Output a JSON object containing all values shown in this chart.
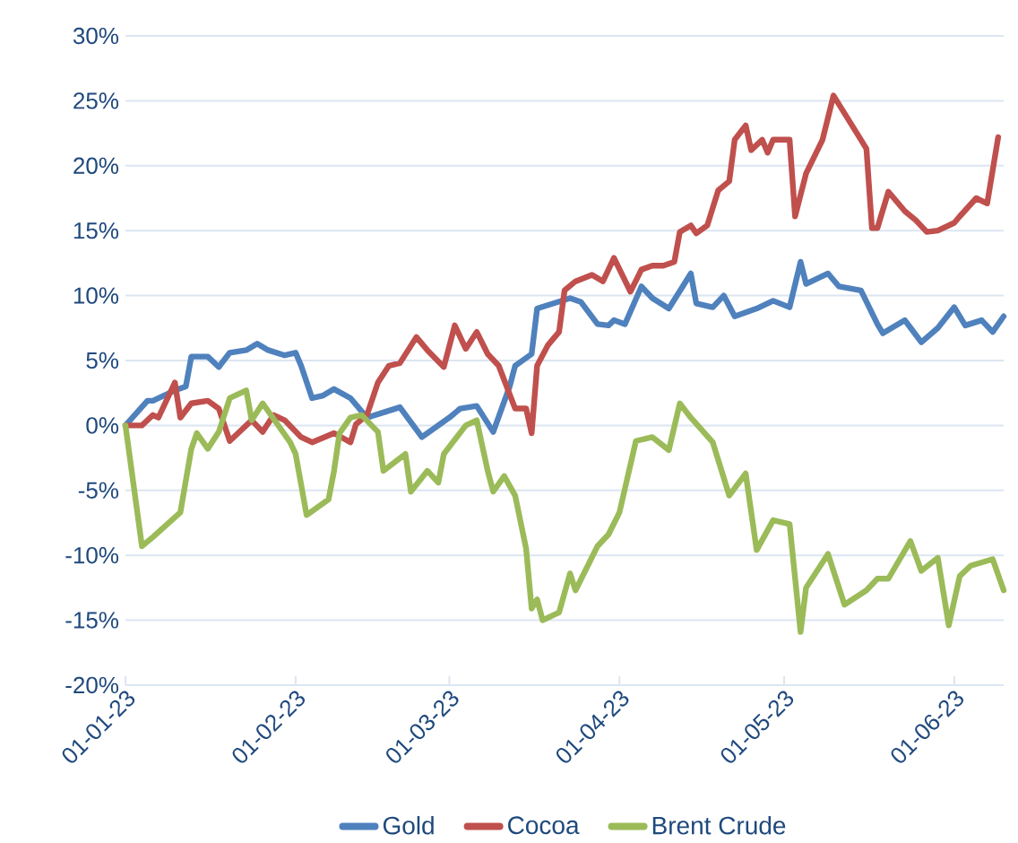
{
  "chart_data": {
    "type": "line",
    "xlim": [
      "2023-01-01",
      "2023-06-10"
    ],
    "xticks": [
      {
        "value": "2023-01-01",
        "label": "01-01-23"
      },
      {
        "value": "2023-02-01",
        "label": "01-02-23"
      },
      {
        "value": "2023-03-01",
        "label": "01-03-23"
      },
      {
        "value": "2023-04-01",
        "label": "01-04-23"
      },
      {
        "value": "2023-05-01",
        "label": "01-05-23"
      },
      {
        "value": "2023-06-01",
        "label": "01-06-23"
      }
    ],
    "ylim": [
      -20,
      30
    ],
    "yticks": [
      {
        "value": -20,
        "label": "-20%"
      },
      {
        "value": -15,
        "label": "-15%"
      },
      {
        "value": -10,
        "label": "-10%"
      },
      {
        "value": -5,
        "label": "-5%"
      },
      {
        "value": 0,
        "label": "0%"
      },
      {
        "value": 5,
        "label": "5%"
      },
      {
        "value": 10,
        "label": "10%"
      },
      {
        "value": 15,
        "label": "15%"
      },
      {
        "value": 20,
        "label": "20%"
      },
      {
        "value": 25,
        "label": "25%"
      },
      {
        "value": 30,
        "label": "30%"
      }
    ],
    "grid": "y",
    "legend": "bottom",
    "marker": "none",
    "line_style": "solid",
    "series": [
      {
        "name": "Gold",
        "color": "#4f81bd",
        "x": [
          "2023-01-01",
          "2023-01-05",
          "2023-01-06",
          "2023-01-10",
          "2023-01-12",
          "2023-01-13",
          "2023-01-16",
          "2023-01-18",
          "2023-01-20",
          "2023-01-23",
          "2023-01-25",
          "2023-01-27",
          "2023-01-30",
          "2023-02-01",
          "2023-02-02",
          "2023-02-04",
          "2023-02-06",
          "2023-02-08",
          "2023-02-11",
          "2023-02-14",
          "2023-02-17",
          "2023-02-20",
          "2023-02-24",
          "2023-03-01",
          "2023-03-03",
          "2023-03-06",
          "2023-03-09",
          "2023-03-12",
          "2023-03-13",
          "2023-03-16",
          "2023-03-17",
          "2023-03-20",
          "2023-03-23",
          "2023-03-25",
          "2023-03-28",
          "2023-03-30",
          "2023-03-31",
          "2023-04-02",
          "2023-04-05",
          "2023-04-07",
          "2023-04-10",
          "2023-04-14",
          "2023-04-15",
          "2023-04-18",
          "2023-04-20",
          "2023-04-22",
          "2023-04-26",
          "2023-04-29",
          "2023-05-02",
          "2023-05-04",
          "2023-05-05",
          "2023-05-09",
          "2023-05-11",
          "2023-05-15",
          "2023-05-18",
          "2023-05-19",
          "2023-05-23",
          "2023-05-26",
          "2023-05-29",
          "2023-06-01",
          "2023-06-03",
          "2023-06-06",
          "2023-06-08",
          "2023-06-10"
        ],
        "values": [
          0,
          1.9,
          1.9,
          2.7,
          3.0,
          5.3,
          5.3,
          4.5,
          5.6,
          5.8,
          6.3,
          5.8,
          5.4,
          5.6,
          4.6,
          2.1,
          2.3,
          2.8,
          2.1,
          0.6,
          1.0,
          1.4,
          -0.9,
          0.6,
          1.3,
          1.5,
          -0.5,
          3.0,
          4.6,
          5.5,
          9.0,
          9.4,
          9.8,
          9.5,
          7.8,
          7.7,
          8.1,
          7.8,
          10.7,
          9.8,
          9.0,
          11.7,
          9.4,
          9.1,
          10.0,
          8.4,
          9.0,
          9.6,
          9.1,
          12.6,
          10.9,
          11.7,
          10.7,
          10.4,
          7.8,
          7.1,
          8.1,
          6.4,
          7.5,
          9.1,
          7.7,
          8.1,
          7.2,
          8.4
        ]
      },
      {
        "name": "Cocoa",
        "color": "#c0504d",
        "x": [
          "2023-01-01",
          "2023-01-04",
          "2023-01-06",
          "2023-01-07",
          "2023-01-10",
          "2023-01-11",
          "2023-01-13",
          "2023-01-16",
          "2023-01-18",
          "2023-01-20",
          "2023-01-24",
          "2023-01-26",
          "2023-01-28",
          "2023-01-30",
          "2023-02-02",
          "2023-02-04",
          "2023-02-08",
          "2023-02-11",
          "2023-02-12",
          "2023-02-14",
          "2023-02-16",
          "2023-02-18",
          "2023-02-20",
          "2023-02-23",
          "2023-02-25",
          "2023-02-28",
          "2023-03-02",
          "2023-03-04",
          "2023-03-06",
          "2023-03-08",
          "2023-03-10",
          "2023-03-13",
          "2023-03-15",
          "2023-03-16",
          "2023-03-17",
          "2023-03-19",
          "2023-03-21",
          "2023-03-22",
          "2023-03-24",
          "2023-03-27",
          "2023-03-29",
          "2023-03-31",
          "2023-04-03",
          "2023-04-05",
          "2023-04-07",
          "2023-04-09",
          "2023-04-11",
          "2023-04-12",
          "2023-04-14",
          "2023-04-15",
          "2023-04-17",
          "2023-04-19",
          "2023-04-21",
          "2023-04-22",
          "2023-04-24",
          "2023-04-25",
          "2023-04-27",
          "2023-04-28",
          "2023-04-29",
          "2023-05-02",
          "2023-05-03",
          "2023-05-05",
          "2023-05-08",
          "2023-05-10",
          "2023-05-15",
          "2023-05-16",
          "2023-05-17",
          "2023-05-18",
          "2023-05-20",
          "2023-05-23",
          "2023-05-25",
          "2023-05-27",
          "2023-05-29",
          "2023-06-01",
          "2023-06-02",
          "2023-06-05",
          "2023-06-07",
          "2023-06-09"
        ],
        "values": [
          0,
          0,
          0.8,
          0.6,
          3.3,
          0.6,
          1.7,
          1.9,
          1.3,
          -1.2,
          0.4,
          -0.5,
          0.8,
          0.4,
          -0.9,
          -1.3,
          -0.6,
          -1.3,
          0.1,
          0.8,
          3.3,
          4.6,
          4.8,
          6.8,
          5.8,
          4.5,
          7.7,
          5.9,
          7.2,
          5.5,
          4.6,
          1.3,
          1.3,
          -0.6,
          4.6,
          6.2,
          7.2,
          10.4,
          11.1,
          11.6,
          11.1,
          12.9,
          10.3,
          12.0,
          12.3,
          12.3,
          12.6,
          14.9,
          15.4,
          14.8,
          15.4,
          18.1,
          18.8,
          22.0,
          23.1,
          21.2,
          22.0,
          21.0,
          22.0,
          22.0,
          16.1,
          19.4,
          22.0,
          25.4,
          22.0,
          21.3,
          15.2,
          15.2,
          18.0,
          16.5,
          15.8,
          14.9,
          15.0,
          15.6,
          16.1,
          17.5,
          17.1,
          22.2
        ]
      },
      {
        "name": "Brent Crude",
        "color": "#9bbb59",
        "x": [
          "2023-01-01",
          "2023-01-04",
          "2023-01-06",
          "2023-01-11",
          "2023-01-13",
          "2023-01-14",
          "2023-01-16",
          "2023-01-18",
          "2023-01-20",
          "2023-01-23",
          "2023-01-24",
          "2023-01-26",
          "2023-01-31",
          "2023-02-01",
          "2023-02-03",
          "2023-02-07",
          "2023-02-08",
          "2023-02-09",
          "2023-02-11",
          "2023-02-13",
          "2023-02-16",
          "2023-02-17",
          "2023-02-21",
          "2023-02-22",
          "2023-02-25",
          "2023-02-27",
          "2023-02-28",
          "2023-03-04",
          "2023-03-06",
          "2023-03-08",
          "2023-03-09",
          "2023-03-11",
          "2023-03-13",
          "2023-03-15",
          "2023-03-16",
          "2023-03-17",
          "2023-03-18",
          "2023-03-21",
          "2023-03-23",
          "2023-03-24",
          "2023-03-28",
          "2023-03-30",
          "2023-04-01",
          "2023-04-04",
          "2023-04-07",
          "2023-04-10",
          "2023-04-12",
          "2023-04-14",
          "2023-04-18",
          "2023-04-21",
          "2023-04-24",
          "2023-04-26",
          "2023-04-29",
          "2023-05-02",
          "2023-05-04",
          "2023-05-05",
          "2023-05-09",
          "2023-05-12",
          "2023-05-16",
          "2023-05-18",
          "2023-05-20",
          "2023-05-24",
          "2023-05-26",
          "2023-05-29",
          "2023-05-31",
          "2023-06-02",
          "2023-06-04",
          "2023-06-08",
          "2023-06-10"
        ],
        "values": [
          0,
          -9.3,
          -8.6,
          -6.7,
          -1.8,
          -0.6,
          -1.8,
          -0.5,
          2.1,
          2.7,
          0.4,
          1.7,
          -1.3,
          -2.2,
          -6.9,
          -5.7,
          -3.5,
          -0.6,
          0.6,
          0.8,
          -0.5,
          -3.5,
          -2.2,
          -5.1,
          -3.5,
          -4.4,
          -2.2,
          0,
          0.4,
          -3.5,
          -5.1,
          -3.9,
          -5.4,
          -9.5,
          -14.1,
          -13.4,
          -15.0,
          -14.4,
          -11.4,
          -12.7,
          -9.3,
          -8.4,
          -6.7,
          -1.2,
          -0.9,
          -1.9,
          1.7,
          0.6,
          -1.3,
          -5.4,
          -3.7,
          -9.6,
          -7.3,
          -7.6,
          -15.9,
          -12.5,
          -9.9,
          -13.8,
          -12.7,
          -11.8,
          -11.8,
          -8.9,
          -11.2,
          -10.2,
          -15.4,
          -11.6,
          -10.8,
          -10.3,
          -12.7
        ]
      }
    ]
  }
}
